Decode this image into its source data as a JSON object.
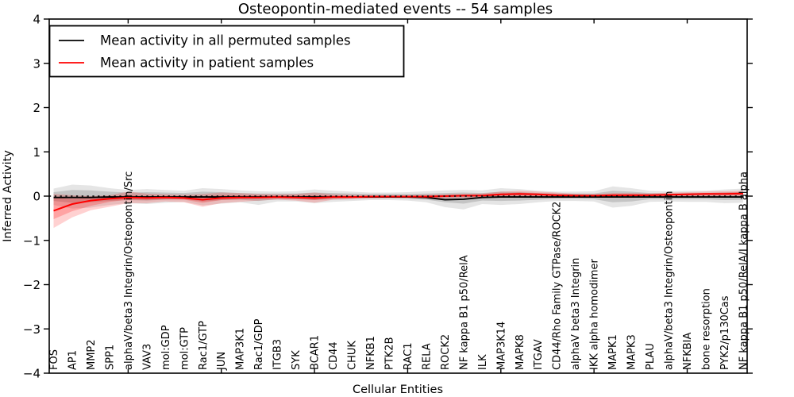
{
  "chart_data": {
    "type": "line",
    "title": "Osteopontin-mediated events -- 54 samples",
    "xlabel": "Cellular Entities",
    "ylabel": "Inferred Activity",
    "ylim": [
      -4,
      4
    ],
    "ytick_values": [
      4,
      3,
      2,
      1,
      0,
      -1,
      -2,
      -3,
      -4
    ],
    "ytick_labels": [
      "4",
      "3",
      "2",
      "1",
      "0",
      "−1",
      "−2",
      "−3",
      "−4"
    ],
    "grid": false,
    "zero_line": {
      "style": "dotted",
      "color": "#000000",
      "value": 0
    },
    "legend": {
      "position": "upper left",
      "entries": [
        {
          "label": "Mean activity in all permuted samples",
          "color": "#000000"
        },
        {
          "label": "Mean activity in patient samples",
          "color": "#ff0000"
        }
      ]
    },
    "categories": [
      "FOS",
      "AP1",
      "MMP2",
      "SPP1",
      "alphaV/beta3 Integrin/Osteopontin/Src",
      "VAV3",
      "mol:GDP",
      "mol:GTP",
      "Rac1/GTP",
      "JUN",
      "MAP3K1",
      "Rac1/GDP",
      "ITGB3",
      "SYK",
      "BCAR1",
      "CD44",
      "CHUK",
      "NFKB1",
      "PTK2B",
      "RAC1",
      "RELA",
      "ROCK2",
      "NF kappa B1 p50/RelA",
      "ILK",
      "MAP3K14",
      "MAPK8",
      "ITGAV",
      "CD44/Rho Family GTPase/ROCK2",
      "alphaV beta3 Integrin",
      "IKK alpha homodimer",
      "MAPK1",
      "MAPK3",
      "PLAU",
      "alphaV/beta3 Integrin/Osteopontin",
      "NFKBIA",
      "bone resorption",
      "PYK2/p130Cas",
      "NF kappa B1 p50/RelA/I kappa B alpha"
    ],
    "series": [
      {
        "name": "Mean activity in all permuted samples",
        "color": "#000000",
        "band_color": "#000000",
        "band_opacity": 0.1,
        "mean": [
          -0.03,
          -0.03,
          -0.03,
          -0.02,
          -0.02,
          -0.02,
          -0.02,
          -0.02,
          -0.02,
          -0.02,
          -0.02,
          -0.02,
          -0.02,
          -0.02,
          -0.02,
          -0.02,
          -0.02,
          -0.02,
          -0.02,
          -0.02,
          -0.03,
          -0.08,
          -0.07,
          -0.03,
          -0.02,
          -0.02,
          -0.02,
          -0.02,
          -0.02,
          -0.02,
          -0.02,
          -0.02,
          -0.02,
          -0.02,
          -0.02,
          -0.02,
          -0.02,
          -0.02
        ],
        "band_outer_top": [
          0.17,
          0.26,
          0.24,
          0.18,
          0.14,
          0.16,
          0.14,
          0.12,
          0.18,
          0.16,
          0.13,
          0.11,
          0.1,
          0.11,
          0.15,
          0.12,
          0.1,
          0.08,
          0.08,
          0.09,
          0.11,
          0.13,
          0.14,
          0.13,
          0.18,
          0.16,
          0.12,
          0.1,
          0.1,
          0.11,
          0.22,
          0.18,
          0.12,
          0.11,
          0.12,
          0.12,
          0.15,
          0.17
        ],
        "band_outer_bottom": [
          -0.2,
          -0.28,
          -0.26,
          -0.2,
          -0.16,
          -0.18,
          -0.15,
          -0.13,
          -0.21,
          -0.17,
          -0.14,
          -0.2,
          -0.12,
          -0.12,
          -0.16,
          -0.13,
          -0.11,
          -0.09,
          -0.09,
          -0.1,
          -0.14,
          -0.25,
          -0.3,
          -0.18,
          -0.2,
          -0.18,
          -0.14,
          -0.11,
          -0.11,
          -0.12,
          -0.26,
          -0.22,
          -0.13,
          -0.12,
          -0.13,
          -0.13,
          -0.16,
          -0.15
        ],
        "band_inner_top": [
          0.09,
          0.14,
          0.13,
          0.1,
          0.08,
          0.09,
          0.08,
          0.07,
          0.1,
          0.09,
          0.07,
          0.06,
          0.06,
          0.06,
          0.08,
          0.07,
          0.06,
          0.05,
          0.05,
          0.05,
          0.06,
          0.07,
          0.08,
          0.07,
          0.1,
          0.09,
          0.07,
          0.06,
          0.06,
          0.06,
          0.12,
          0.1,
          0.07,
          0.06,
          0.07,
          0.07,
          0.08,
          0.09
        ],
        "band_inner_bottom": [
          -0.11,
          -0.15,
          -0.14,
          -0.11,
          -0.09,
          -0.1,
          -0.08,
          -0.07,
          -0.12,
          -0.09,
          -0.08,
          -0.11,
          -0.07,
          -0.07,
          -0.09,
          -0.07,
          -0.06,
          -0.05,
          -0.05,
          -0.06,
          -0.08,
          -0.14,
          -0.17,
          -0.1,
          -0.11,
          -0.1,
          -0.08,
          -0.06,
          -0.06,
          -0.07,
          -0.14,
          -0.12,
          -0.07,
          -0.07,
          -0.07,
          -0.07,
          -0.09,
          -0.08
        ]
      },
      {
        "name": "Mean activity in patient samples",
        "color": "#ff0000",
        "band_color": "#ff0000",
        "band_opacity": 0.18,
        "mean": [
          -0.33,
          -0.18,
          -0.1,
          -0.06,
          -0.03,
          -0.04,
          -0.03,
          -0.04,
          -0.08,
          -0.04,
          -0.03,
          -0.03,
          -0.02,
          -0.03,
          -0.04,
          -0.02,
          -0.02,
          -0.01,
          -0.01,
          -0.01,
          -0.01,
          0.0,
          0.01,
          0.01,
          0.04,
          0.05,
          0.04,
          0.02,
          0.01,
          0.01,
          0.02,
          0.02,
          0.02,
          0.03,
          0.04,
          0.05,
          0.05,
          0.06
        ],
        "band_outer_top": [
          0.05,
          0.02,
          0.0,
          0.02,
          0.1,
          0.06,
          0.04,
          0.03,
          0.05,
          0.08,
          0.07,
          0.05,
          0.04,
          0.05,
          0.08,
          0.04,
          0.03,
          0.02,
          0.02,
          0.02,
          0.03,
          0.04,
          0.05,
          0.06,
          0.1,
          0.12,
          0.1,
          0.08,
          0.05,
          0.04,
          0.07,
          0.07,
          0.06,
          0.08,
          0.09,
          0.1,
          0.11,
          0.12
        ],
        "band_outer_bottom": [
          -0.72,
          -0.48,
          -0.32,
          -0.24,
          -0.16,
          -0.16,
          -0.12,
          -0.14,
          -0.24,
          -0.16,
          -0.13,
          -0.1,
          -0.08,
          -0.1,
          -0.15,
          -0.08,
          -0.07,
          -0.05,
          -0.04,
          -0.04,
          -0.05,
          -0.05,
          -0.04,
          -0.04,
          -0.04,
          -0.04,
          -0.04,
          -0.04,
          -0.03,
          -0.03,
          -0.04,
          -0.04,
          -0.03,
          -0.02,
          -0.02,
          -0.01,
          0.0,
          0.0
        ],
        "band_inner_top": [
          -0.03,
          -0.06,
          -0.04,
          -0.02,
          0.02,
          0.0,
          0.0,
          0.0,
          0.0,
          0.02,
          0.02,
          0.01,
          0.01,
          0.01,
          0.02,
          0.01,
          0.0,
          0.0,
          0.0,
          0.0,
          0.01,
          0.02,
          0.02,
          0.03,
          0.06,
          0.08,
          0.06,
          0.04,
          0.03,
          0.02,
          0.04,
          0.04,
          0.04,
          0.05,
          0.06,
          0.07,
          0.08,
          0.09
        ],
        "band_inner_bottom": [
          -0.52,
          -0.34,
          -0.22,
          -0.13,
          -0.08,
          -0.09,
          -0.07,
          -0.08,
          -0.15,
          -0.09,
          -0.07,
          -0.06,
          -0.05,
          -0.06,
          -0.09,
          -0.05,
          -0.04,
          -0.03,
          -0.03,
          -0.03,
          -0.03,
          -0.02,
          -0.01,
          -0.01,
          0.01,
          0.02,
          0.01,
          0.0,
          -0.01,
          -0.01,
          0.0,
          0.0,
          0.0,
          0.01,
          0.02,
          0.03,
          0.03,
          0.03
        ]
      }
    ],
    "x_major_tick_indices": [
      4,
      9,
      14,
      19,
      24,
      29,
      34
    ]
  }
}
